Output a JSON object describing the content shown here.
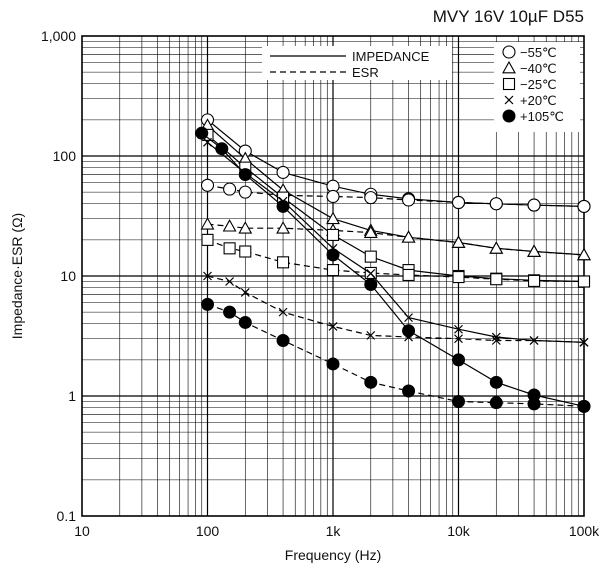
{
  "chart_data": {
    "type": "line",
    "title": "MVY 16V 10µF D55",
    "xlabel": "Frequency (Hz)",
    "ylabel": "Impedance·ESR (Ω)",
    "x_scale": "log",
    "y_scale": "log",
    "xlim": [
      10,
      100000
    ],
    "ylim": [
      0.1,
      1000
    ],
    "grid": true,
    "x_ticks": [
      {
        "value": 10,
        "label": "10"
      },
      {
        "value": 100,
        "label": "100"
      },
      {
        "value": 1000,
        "label": "1k"
      },
      {
        "value": 10000,
        "label": "10k"
      },
      {
        "value": 100000,
        "label": "100k"
      }
    ],
    "y_ticks": [
      {
        "value": 0.1,
        "label": "0.1"
      },
      {
        "value": 1,
        "label": "1"
      },
      {
        "value": 10,
        "label": "10"
      },
      {
        "value": 100,
        "label": "100"
      },
      {
        "value": 1000,
        "label": "1,000"
      }
    ],
    "line_legend": [
      {
        "label": "IMPEDANCE",
        "style": "solid"
      },
      {
        "label": "ESR",
        "style": "dashed"
      }
    ],
    "series": [
      {
        "name": "−55℃",
        "marker": "circle",
        "impedance": {
          "x": [
            100,
            200,
            400,
            1000,
            2000,
            4000,
            10000,
            20000,
            40000,
            100000
          ],
          "y": [
            200,
            110,
            73,
            56,
            48,
            44,
            41,
            40,
            39,
            38
          ]
        },
        "esr": {
          "x": [
            100,
            150,
            200,
            400,
            1000,
            2000,
            4000,
            10000,
            20000,
            40000,
            100000
          ],
          "y": [
            57,
            53,
            50,
            47,
            46,
            45,
            43,
            41,
            40,
            39,
            38
          ]
        }
      },
      {
        "name": "−40℃",
        "marker": "triangle",
        "impedance": {
          "x": [
            100,
            200,
            400,
            1000,
            2000,
            4000,
            10000,
            20000,
            40000,
            100000
          ],
          "y": [
            180,
            95,
            52,
            30,
            24,
            21,
            19,
            17,
            16,
            15
          ]
        },
        "esr": {
          "x": [
            100,
            150,
            200,
            400,
            1000,
            2000,
            4000,
            10000,
            20000,
            40000,
            100000
          ],
          "y": [
            27,
            26,
            25,
            25,
            24,
            23,
            21,
            19,
            17,
            16,
            15
          ]
        }
      },
      {
        "name": "−25℃",
        "marker": "square",
        "impedance": {
          "x": [
            100,
            200,
            400,
            1000,
            2000,
            4000,
            10000,
            20000,
            40000,
            100000
          ],
          "y": [
            150,
            80,
            45,
            22,
            14.5,
            11.2,
            10,
            9.5,
            9.2,
            9
          ]
        },
        "esr": {
          "x": [
            100,
            150,
            200,
            400,
            1000,
            2000,
            4000,
            10000,
            20000,
            40000,
            100000
          ],
          "y": [
            20,
            17,
            16,
            13,
            11.2,
            10.6,
            10.2,
            9.8,
            9.4,
            9.1,
            9
          ]
        }
      },
      {
        "name": "+20℃",
        "marker": "x",
        "impedance": {
          "x": [
            100,
            200,
            400,
            1000,
            2000,
            4000,
            10000,
            20000,
            40000,
            100000
          ],
          "y": [
            130,
            72,
            42,
            17,
            10.5,
            4.5,
            3.6,
            3.1,
            2.9,
            2.8
          ]
        },
        "esr": {
          "x": [
            100,
            150,
            200,
            400,
            1000,
            2000,
            4000,
            10000,
            20000,
            40000,
            100000
          ],
          "y": [
            10,
            9,
            7.3,
            5,
            3.8,
            3.2,
            3.1,
            3,
            2.9,
            2.9,
            2.8
          ]
        }
      },
      {
        "name": "+105℃",
        "marker": "filled-circle",
        "impedance": {
          "x": [
            90,
            130,
            200,
            400,
            1000,
            2000,
            4000,
            10000,
            20000,
            40000,
            100000
          ],
          "y": [
            155,
            115,
            70,
            38,
            15,
            8.5,
            3.5,
            2,
            1.3,
            1.02,
            0.82
          ]
        },
        "esr": {
          "x": [
            100,
            150,
            200,
            400,
            1000,
            2000,
            4000,
            10000,
            20000,
            40000,
            100000
          ],
          "y": [
            5.8,
            5,
            4.1,
            2.9,
            1.85,
            1.3,
            1.1,
            0.9,
            0.88,
            0.86,
            0.82
          ]
        }
      }
    ]
  }
}
